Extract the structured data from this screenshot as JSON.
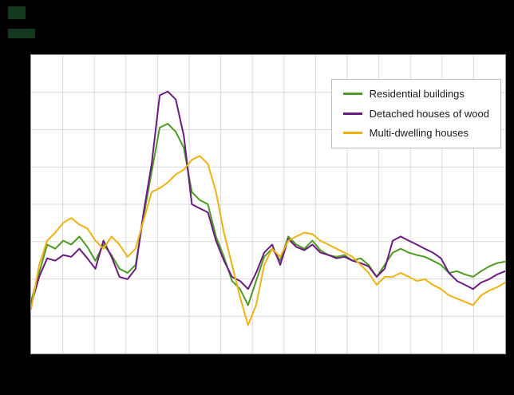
{
  "style": {
    "page_bg": "#000000",
    "plot_bg": "#ffffff",
    "grid_color": "#d9d9d9",
    "plot_border_color": "#9a9a9a",
    "legend_border_color": "#bfbfbf",
    "text_color": "#1a1a1a"
  },
  "chart_data": {
    "type": "line",
    "title": "",
    "x_axis": {
      "label": "",
      "tick_labels_visible": false
    },
    "y_axis": {
      "label": "",
      "tick_labels_visible": false,
      "range_note": "no axis labels visible; values are relative scale 0-100 estimated from plot geometry"
    },
    "grid": {
      "rows": 8,
      "cols": 15,
      "visible": true
    },
    "legend": {
      "position": "top-right-inside"
    },
    "series": [
      {
        "name": "Residential buildings",
        "color": "#4e9a23",
        "values": [
          17.6,
          27,
          36.5,
          35.1,
          37.8,
          36.5,
          39.2,
          35.7,
          31.1,
          36.5,
          33,
          28.4,
          27,
          29.7,
          45.9,
          60.8,
          75.7,
          77,
          74.3,
          68.9,
          54.1,
          51.4,
          50,
          39.2,
          32.4,
          24.3,
          21.6,
          16.2,
          24.3,
          32.4,
          35.1,
          31.1,
          39.2,
          36.5,
          35.1,
          37.8,
          34.6,
          33,
          32.4,
          33,
          31.1,
          31.9,
          29.7,
          25.7,
          29.7,
          33.8,
          35.1,
          33.8,
          33,
          32.4,
          31.1,
          29.7,
          27,
          27.6,
          26.5,
          25.7,
          27.6,
          29.2,
          30.3,
          30.8
        ]
      },
      {
        "name": "Detached houses of wood",
        "color": "#6a1b7f",
        "values": [
          16.2,
          25.7,
          31.9,
          31.1,
          33,
          32.4,
          35.1,
          31.9,
          28.4,
          37.8,
          32.4,
          25.7,
          24.9,
          28.4,
          47.3,
          63.5,
          86.5,
          87.8,
          85.1,
          73,
          50,
          48.6,
          47.3,
          37.8,
          31.1,
          25.7,
          24.3,
          21.6,
          27,
          33.8,
          36.5,
          29.7,
          38.4,
          35.7,
          34.6,
          36.5,
          33.8,
          33,
          31.9,
          32.4,
          31.1,
          30.3,
          29.2,
          25.7,
          28.4,
          37.8,
          39.2,
          37.8,
          36.5,
          35.1,
          33.8,
          31.9,
          27,
          24.3,
          23,
          21.6,
          23.8,
          24.9,
          26.5,
          27.6
        ]
      },
      {
        "name": "Multi-dwelling houses",
        "color": "#eeb211",
        "values": [
          14.9,
          29.7,
          37.8,
          40.5,
          43.8,
          45.4,
          43.2,
          41.9,
          37.8,
          35.1,
          39.2,
          36.5,
          32.4,
          35.1,
          44.6,
          54.1,
          55.4,
          57.3,
          60,
          61.6,
          64.9,
          66.2,
          63.5,
          54.1,
          40.5,
          29.7,
          18.9,
          9.5,
          16.2,
          29.7,
          35.1,
          32.4,
          37.8,
          39.2,
          40.5,
          40,
          37.8,
          36.5,
          35.1,
          33.8,
          32.4,
          29.7,
          27,
          23,
          25.7,
          25.7,
          27,
          25.7,
          24.3,
          24.9,
          23,
          21.6,
          19.5,
          18.4,
          17.3,
          16.2,
          19.5,
          21.1,
          22.2,
          23.8
        ]
      }
    ]
  }
}
